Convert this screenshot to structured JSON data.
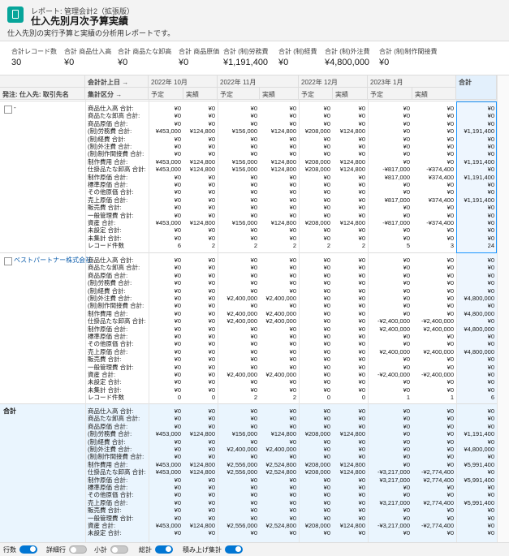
{
  "header": {
    "breadcrumb": "レポート: 管理会計2（拡張版）",
    "title": "仕入先別月次予算実績",
    "description": "仕入先別の実行予算と実績の分析用レポートです。"
  },
  "summary": [
    {
      "label": "合計レコード数",
      "value": "30"
    },
    {
      "label": "合計 商品仕入高",
      "value": "¥0"
    },
    {
      "label": "合計 商品たな卸高",
      "value": "¥0"
    },
    {
      "label": "合計 商品原価",
      "value": "¥0"
    },
    {
      "label": "合計 (制)労務費",
      "value": "¥1,191,400"
    },
    {
      "label": "合計 (制)経費",
      "value": "¥0"
    },
    {
      "label": "合計 (制)外注費",
      "value": "¥4,800,000"
    },
    {
      "label": "合計 (制)制作間接費",
      "value": "¥0"
    }
  ],
  "table": {
    "column_group_header": "会計計上日 →",
    "row_group_header": "発注: 仕入先: 取引先名",
    "row_label_header": "集計区分 →",
    "months": [
      "2022年 10月",
      "2022年 11月",
      "2022年 12月",
      "2023年 1月"
    ],
    "subcolumns": [
      "予定",
      "実績",
      "予定",
      "実績",
      "予定",
      "実績",
      "予定",
      "実績"
    ],
    "total_header": "合計",
    "groups": [
      {
        "name": "-",
        "rows": [
          [
            "商品仕入高 合計:",
            "¥0",
            "¥0",
            "¥0",
            "¥0",
            "¥0",
            "¥0",
            "¥0",
            "¥0",
            "¥0"
          ],
          [
            "商品たな卸高 合計:",
            "¥0",
            "¥0",
            "¥0",
            "¥0",
            "¥0",
            "¥0",
            "¥0",
            "¥0",
            "¥0"
          ],
          [
            "商品原価 合計:",
            "¥0",
            "¥0",
            "¥0",
            "¥0",
            "¥0",
            "¥0",
            "¥0",
            "¥0",
            "¥0"
          ],
          [
            "(制)労務費 合計:",
            "¥453,000",
            "¥124,800",
            "¥156,000",
            "¥124,800",
            "¥208,000",
            "¥124,800",
            "¥0",
            "¥0",
            "¥1,191,400"
          ],
          [
            "(制)経費 合計:",
            "¥0",
            "¥0",
            "¥0",
            "¥0",
            "¥0",
            "¥0",
            "¥0",
            "¥0",
            "¥0"
          ],
          [
            "(制)外注費 合計:",
            "¥0",
            "¥0",
            "¥0",
            "¥0",
            "¥0",
            "¥0",
            "¥0",
            "¥0",
            "¥0"
          ],
          [
            "(制)制作間接費 合計:",
            "¥0",
            "¥0",
            "¥0",
            "¥0",
            "¥0",
            "¥0",
            "¥0",
            "¥0",
            "¥0"
          ],
          [
            "制作費用 合計:",
            "¥453,000",
            "¥124,800",
            "¥156,000",
            "¥124,800",
            "¥208,000",
            "¥124,800",
            "¥0",
            "¥0",
            "¥1,191,400"
          ],
          [
            "仕掛品たな卸高 合計:",
            "¥453,000",
            "¥124,800",
            "¥156,000",
            "¥124,800",
            "¥208,000",
            "¥124,800",
            "-¥817,000",
            "-¥374,400",
            "¥0"
          ],
          [
            "制作原価 合計:",
            "¥0",
            "¥0",
            "¥0",
            "¥0",
            "¥0",
            "¥0",
            "¥817,000",
            "¥374,400",
            "¥1,191,400"
          ],
          [
            "標準原価 合計:",
            "¥0",
            "¥0",
            "¥0",
            "¥0",
            "¥0",
            "¥0",
            "¥0",
            "¥0",
            "¥0"
          ],
          [
            "その他原価 合計:",
            "¥0",
            "¥0",
            "¥0",
            "¥0",
            "¥0",
            "¥0",
            "¥0",
            "¥0",
            "¥0"
          ],
          [
            "売上原価 合計:",
            "¥0",
            "¥0",
            "¥0",
            "¥0",
            "¥0",
            "¥0",
            "¥817,000",
            "¥374,400",
            "¥1,191,400"
          ],
          [
            "販売費 合計:",
            "¥0",
            "¥0",
            "¥0",
            "¥0",
            "¥0",
            "¥0",
            "¥0",
            "¥0",
            "¥0"
          ],
          [
            "一般管理費 合計:",
            "¥0",
            "¥0",
            "¥0",
            "¥0",
            "¥0",
            "¥0",
            "¥0",
            "¥0",
            "¥0"
          ],
          [
            "資産 合計:",
            "¥453,000",
            "¥124,800",
            "¥156,000",
            "¥124,800",
            "¥208,000",
            "¥124,800",
            "-¥817,000",
            "-¥374,400",
            "¥0"
          ],
          [
            "未設定 合計:",
            "¥0",
            "¥0",
            "¥0",
            "¥0",
            "¥0",
            "¥0",
            "¥0",
            "¥0",
            "¥0"
          ],
          [
            "未集計 合計:",
            "¥0",
            "¥0",
            "¥0",
            "¥0",
            "¥0",
            "¥0",
            "¥0",
            "¥0",
            "¥0"
          ],
          [
            "レコード件数",
            "6",
            "2",
            "2",
            "2",
            "2",
            "2",
            "5",
            "3",
            "24"
          ]
        ]
      },
      {
        "name": "ベストパートナー株式会社",
        "rows": [
          [
            "商品仕入高 合計:",
            "¥0",
            "¥0",
            "¥0",
            "¥0",
            "¥0",
            "¥0",
            "¥0",
            "¥0",
            "¥0"
          ],
          [
            "商品たな卸高 合計:",
            "¥0",
            "¥0",
            "¥0",
            "¥0",
            "¥0",
            "¥0",
            "¥0",
            "¥0",
            "¥0"
          ],
          [
            "商品原価 合計:",
            "¥0",
            "¥0",
            "¥0",
            "¥0",
            "¥0",
            "¥0",
            "¥0",
            "¥0",
            "¥0"
          ],
          [
            "(制)労務費 合計:",
            "¥0",
            "¥0",
            "¥0",
            "¥0",
            "¥0",
            "¥0",
            "¥0",
            "¥0",
            "¥0"
          ],
          [
            "(制)経費 合計:",
            "¥0",
            "¥0",
            "¥0",
            "¥0",
            "¥0",
            "¥0",
            "¥0",
            "¥0",
            "¥0"
          ],
          [
            "(制)外注費 合計:",
            "¥0",
            "¥0",
            "¥2,400,000",
            "¥2,400,000",
            "¥0",
            "¥0",
            "¥0",
            "¥0",
            "¥4,800,000"
          ],
          [
            "(制)制作間接費 合計:",
            "¥0",
            "¥0",
            "¥0",
            "¥0",
            "¥0",
            "¥0",
            "¥0",
            "¥0",
            "¥0"
          ],
          [
            "制作費用 合計:",
            "¥0",
            "¥0",
            "¥2,400,000",
            "¥2,400,000",
            "¥0",
            "¥0",
            "¥0",
            "¥0",
            "¥4,800,000"
          ],
          [
            "仕掛品たな卸高 合計:",
            "¥0",
            "¥0",
            "¥2,400,000",
            "¥2,400,000",
            "¥0",
            "¥0",
            "-¥2,400,000",
            "-¥2,400,000",
            "¥0"
          ],
          [
            "制作原価 合計:",
            "¥0",
            "¥0",
            "¥0",
            "¥0",
            "¥0",
            "¥0",
            "¥2,400,000",
            "¥2,400,000",
            "¥4,800,000"
          ],
          [
            "標準原価 合計:",
            "¥0",
            "¥0",
            "¥0",
            "¥0",
            "¥0",
            "¥0",
            "¥0",
            "¥0",
            "¥0"
          ],
          [
            "その他原価 合計:",
            "¥0",
            "¥0",
            "¥0",
            "¥0",
            "¥0",
            "¥0",
            "¥0",
            "¥0",
            "¥0"
          ],
          [
            "売上原価 合計:",
            "¥0",
            "¥0",
            "¥0",
            "¥0",
            "¥0",
            "¥0",
            "¥2,400,000",
            "¥2,400,000",
            "¥4,800,000"
          ],
          [
            "販売費 合計:",
            "¥0",
            "¥0",
            "¥0",
            "¥0",
            "¥0",
            "¥0",
            "¥0",
            "¥0",
            "¥0"
          ],
          [
            "一般管理費 合計:",
            "¥0",
            "¥0",
            "¥0",
            "¥0",
            "¥0",
            "¥0",
            "¥0",
            "¥0",
            "¥0"
          ],
          [
            "資産 合計:",
            "¥0",
            "¥0",
            "¥2,400,000",
            "¥2,400,000",
            "¥0",
            "¥0",
            "-¥2,400,000",
            "-¥2,400,000",
            "¥0"
          ],
          [
            "未設定 合計:",
            "¥0",
            "¥0",
            "¥0",
            "¥0",
            "¥0",
            "¥0",
            "¥0",
            "¥0",
            "¥0"
          ],
          [
            "未集計 合計:",
            "¥0",
            "¥0",
            "¥0",
            "¥0",
            "¥0",
            "¥0",
            "¥0",
            "¥0",
            "¥0"
          ],
          [
            "レコード件数",
            "0",
            "0",
            "2",
            "2",
            "0",
            "0",
            "1",
            "1",
            "6"
          ]
        ]
      },
      {
        "name": "合計",
        "rows": [
          [
            "商品仕入高 合計:",
            "¥0",
            "¥0",
            "¥0",
            "¥0",
            "¥0",
            "¥0",
            "¥0",
            "¥0",
            "¥0"
          ],
          [
            "商品たな卸高 合計:",
            "¥0",
            "¥0",
            "¥0",
            "¥0",
            "¥0",
            "¥0",
            "¥0",
            "¥0",
            "¥0"
          ],
          [
            "商品原価 合計:",
            "¥0",
            "¥0",
            "¥0",
            "¥0",
            "¥0",
            "¥0",
            "¥0",
            "¥0",
            "¥0"
          ],
          [
            "(制)労務費 合計:",
            "¥453,000",
            "¥124,800",
            "¥156,000",
            "¥124,800",
            "¥208,000",
            "¥124,800",
            "¥0",
            "¥0",
            "¥1,191,400"
          ],
          [
            "(制)経費 合計:",
            "¥0",
            "¥0",
            "¥0",
            "¥0",
            "¥0",
            "¥0",
            "¥0",
            "¥0",
            "¥0"
          ],
          [
            "(制)外注費 合計:",
            "¥0",
            "¥0",
            "¥2,400,000",
            "¥2,400,000",
            "¥0",
            "¥0",
            "¥0",
            "¥0",
            "¥4,800,000"
          ],
          [
            "(制)制作間接費 合計:",
            "¥0",
            "¥0",
            "¥0",
            "¥0",
            "¥0",
            "¥0",
            "¥0",
            "¥0",
            "¥0"
          ],
          [
            "制作費用 合計:",
            "¥453,000",
            "¥124,800",
            "¥2,556,000",
            "¥2,524,800",
            "¥208,000",
            "¥124,800",
            "¥0",
            "¥0",
            "¥5,991,400"
          ],
          [
            "仕掛品たな卸高 合計:",
            "¥453,000",
            "¥124,800",
            "¥2,556,000",
            "¥2,524,800",
            "¥208,000",
            "¥124,800",
            "-¥3,217,000",
            "-¥2,774,400",
            "¥0"
          ],
          [
            "制作原価 合計:",
            "¥0",
            "¥0",
            "¥0",
            "¥0",
            "¥0",
            "¥0",
            "¥3,217,000",
            "¥2,774,400",
            "¥5,991,400"
          ],
          [
            "標準原価 合計:",
            "¥0",
            "¥0",
            "¥0",
            "¥0",
            "¥0",
            "¥0",
            "¥0",
            "¥0",
            "¥0"
          ],
          [
            "その他原価 合計:",
            "¥0",
            "¥0",
            "¥0",
            "¥0",
            "¥0",
            "¥0",
            "¥0",
            "¥0",
            "¥0"
          ],
          [
            "売上原価 合計:",
            "¥0",
            "¥0",
            "¥0",
            "¥0",
            "¥0",
            "¥0",
            "¥3,217,000",
            "¥2,774,400",
            "¥5,991,400"
          ],
          [
            "販売費 合計:",
            "¥0",
            "¥0",
            "¥0",
            "¥0",
            "¥0",
            "¥0",
            "¥0",
            "¥0",
            "¥0"
          ],
          [
            "一般管理費 合計:",
            "¥0",
            "¥0",
            "¥0",
            "¥0",
            "¥0",
            "¥0",
            "¥0",
            "¥0",
            "¥0"
          ],
          [
            "資産 合計:",
            "¥453,000",
            "¥124,800",
            "¥2,556,000",
            "¥2,524,800",
            "¥208,000",
            "¥124,800",
            "-¥3,217,000",
            "-¥2,774,400",
            "¥0"
          ],
          [
            "未設定 合計:",
            "¥0",
            "¥0",
            "¥0",
            "¥0",
            "¥0",
            "¥0",
            "¥0",
            "¥0",
            "¥0"
          ]
        ]
      }
    ]
  },
  "footer": [
    {
      "label": "行数",
      "on": true
    },
    {
      "label": "詳細行",
      "on": false
    },
    {
      "label": "小計",
      "on": false
    },
    {
      "label": "総計",
      "on": true
    },
    {
      "label": "積み上げ集計",
      "on": true
    }
  ]
}
